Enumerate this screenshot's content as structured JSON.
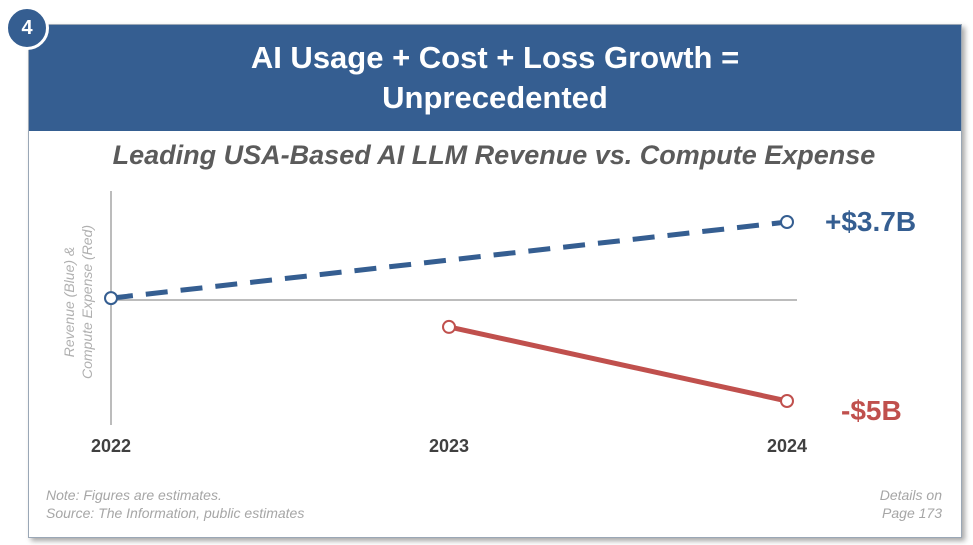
{
  "badge": "4",
  "header": {
    "line1": "AI Usage + Cost + Loss Growth =",
    "line2": "Unprecedented"
  },
  "chart_data": {
    "type": "line",
    "title": "Leading USA-Based AI LLM Revenue vs. Compute Expense",
    "ylabel_line1": "Revenue (Blue) &",
    "ylabel_line2": "Compute Expense (Red)",
    "x": [
      "2022",
      "2023",
      "2024"
    ],
    "series": [
      {
        "name": "Revenue",
        "color": "#355e91",
        "style": "dashed",
        "points": [
          {
            "x": "2022",
            "y": 0
          },
          {
            "x": "2024",
            "y": 3.7
          }
        ],
        "end_label": "+$3.7B"
      },
      {
        "name": "Compute Expense",
        "color": "#c0504d",
        "style": "solid",
        "points": [
          {
            "x": "2023",
            "y": -1.4
          },
          {
            "x": "2024",
            "y": -5
          }
        ],
        "end_label": "-$5B"
      }
    ],
    "ylim": [
      -6,
      4.2
    ],
    "grid": false,
    "legend": "none"
  },
  "footer": {
    "note_line1": "Note: Figures are estimates.",
    "note_line2": "Source: The Information, public estimates",
    "details_line1": "Details on",
    "details_line2": "Page 173"
  }
}
